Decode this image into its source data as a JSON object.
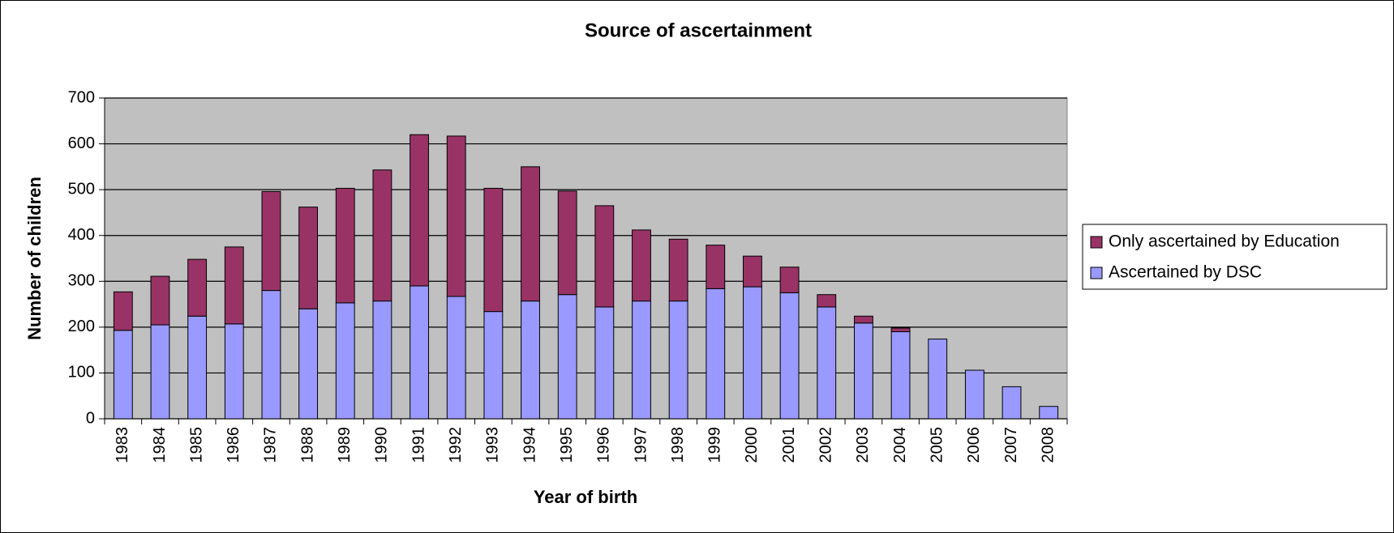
{
  "chart_data": {
    "type": "stacked_bar",
    "title": "Source of ascertainment",
    "x_label": "Year of birth",
    "y_label": "Number of children",
    "categories": [
      "1983",
      "1984",
      "1985",
      "1986",
      "1987",
      "1988",
      "1989",
      "1990",
      "1991",
      "1992",
      "1993",
      "1994",
      "1995",
      "1996",
      "1997",
      "1998",
      "1999",
      "2000",
      "2001",
      "2002",
      "2003",
      "2004",
      "2005",
      "2006",
      "2007",
      "2008"
    ],
    "series": [
      {
        "name": "Only ascertained by Education",
        "color": "#993366",
        "values": [
          84,
          106,
          124,
          168,
          216,
          222,
          250,
          286,
          330,
          350,
          269,
          293,
          226,
          221,
          155,
          135,
          95,
          67,
          56,
          27,
          15,
          8,
          0,
          0,
          0,
          0
        ]
      },
      {
        "name": "Ascertained by DSC",
        "color": "#9999ff",
        "values": [
          193,
          205,
          224,
          207,
          280,
          240,
          253,
          257,
          290,
          267,
          234,
          257,
          271,
          244,
          257,
          257,
          284,
          288,
          275,
          244,
          209,
          190,
          174,
          106,
          70,
          27
        ]
      }
    ],
    "ylim": [
      0,
      700
    ],
    "yticks": [
      0,
      100,
      200,
      300,
      400,
      500,
      600,
      700
    ],
    "grid": true,
    "plot_background": "#c0c0c0",
    "legend": "right"
  }
}
